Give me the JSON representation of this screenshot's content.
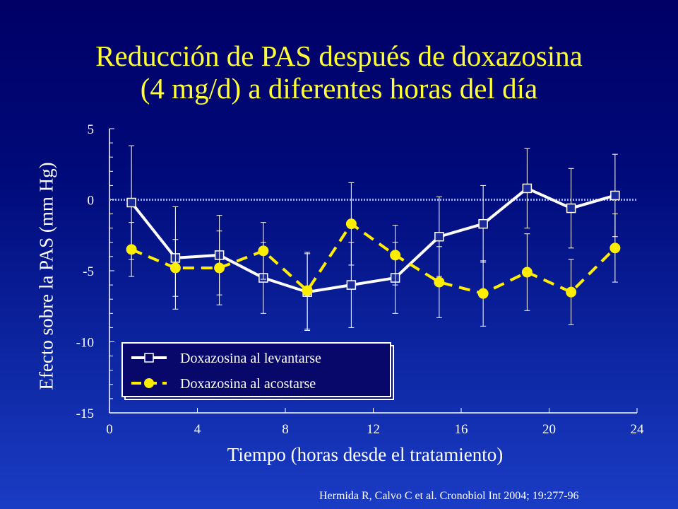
{
  "title": {
    "line1": "Reducción de PAS después de doxazosina",
    "line2": "(4 mg/d) a diferentes horas del día"
  },
  "citation": "Hermida R, Calvo C  et al. Cronobiol Int  2004; 19:277-96",
  "colors": {
    "title": "#ffff33",
    "series_morning": "#ffffff",
    "series_bedtime": "#ffee00",
    "reference_line": "#8fb0ff"
  },
  "chart_data": {
    "type": "line",
    "title": "",
    "xlabel": "Tiempo (horas desde el tratamiento)",
    "ylabel": "Efecto sobre la PAS (mm Hg)",
    "xlim": [
      0,
      24
    ],
    "ylim": [
      -15,
      5
    ],
    "xticks": [
      "0",
      "4",
      "8",
      "12",
      "16",
      "20",
      "24"
    ],
    "yticks": [
      "5",
      "0",
      "-5",
      "-10",
      "-15"
    ],
    "reference_line_y": 0,
    "grid": false,
    "legend_position": "bottom-left",
    "series": [
      {
        "name": "Doxazosina al levantarse",
        "marker": "open-square",
        "line": "solid",
        "color": "#ffffff",
        "x": [
          1,
          3,
          5,
          7,
          9,
          11,
          13,
          15,
          17,
          19,
          21,
          23
        ],
        "y": [
          -0.2,
          -4.1,
          -3.9,
          -5.5,
          -6.5,
          -6.0,
          -5.5,
          -2.6,
          -1.7,
          0.8,
          -0.6,
          0.3
        ],
        "err": [
          4.0,
          3.6,
          2.8,
          2.5,
          2.7,
          3.0,
          2.5,
          2.8,
          2.7,
          2.8,
          2.8,
          2.9
        ]
      },
      {
        "name": "Doxazosina al acostarse",
        "marker": "filled-circle",
        "line": "dashed",
        "color": "#ffee00",
        "x": [
          1,
          3,
          5,
          7,
          9,
          11,
          13,
          15,
          17,
          19,
          21,
          23
        ],
        "y": [
          -3.5,
          -4.8,
          -4.8,
          -3.6,
          -6.4,
          -1.7,
          -3.9,
          -5.8,
          -6.6,
          -5.1,
          -6.5,
          -3.4
        ],
        "err": [
          1.9,
          2.0,
          2.6,
          2.0,
          2.7,
          2.9,
          2.1,
          2.5,
          2.3,
          2.7,
          2.3,
          2.4
        ]
      }
    ]
  }
}
